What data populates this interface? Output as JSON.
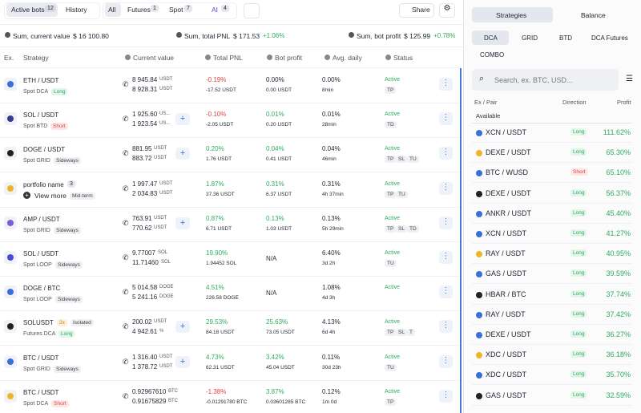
{
  "top": {
    "tabs": [
      {
        "label": "Active bots",
        "count": 12
      },
      {
        "label": "History"
      }
    ],
    "filters": [
      {
        "label": "All"
      },
      {
        "label": "Futures",
        "count": 1
      },
      {
        "label": "Spot",
        "count": 7
      },
      {
        "label": "AI",
        "count": 4
      }
    ],
    "share": "Share"
  },
  "summary": [
    {
      "label": "Sum, current value",
      "value": "$ 16 100.80"
    },
    {
      "label": "Sum, total PNL",
      "value": "$ 171.53",
      "change": "+1.06%"
    },
    {
      "label": "Sum, bot profit",
      "value": "$ 125.99",
      "change": "+0.78%"
    }
  ],
  "table": {
    "headers": [
      "Ex.",
      "Strategy",
      "Current value",
      "Total PNL",
      "Bot profit",
      "Avg. daily",
      "Status"
    ],
    "rows": [
      {
        "pair": "ETH / USDT",
        "type": "Spot DCA",
        "tag": "Long",
        "current": [
          [
            "8 945.84",
            "USDT"
          ],
          [
            "8 928.31",
            "USDT"
          ]
        ],
        "pnl": [
          "-0.19%",
          "-17.52 USDT"
        ],
        "profit": [
          "0.00%",
          "0.00 USDT"
        ],
        "daily": [
          "0.00%",
          "8min"
        ],
        "status": "Active",
        "flags": [
          "TP"
        ]
      },
      {
        "pair": "SOL / USDT",
        "type": "Spot BTD",
        "tag": "Short",
        "current": [
          [
            "1 925.60",
            "US..."
          ],
          [
            "1 923.54",
            "US..."
          ]
        ],
        "pnl": [
          "-0.10%",
          "-2.05 USDT"
        ],
        "profit": [
          "0.01%",
          "0.20 USDT"
        ],
        "daily": [
          "0.01%",
          "28min"
        ],
        "status": "Active",
        "flags": [
          "TD"
        ]
      },
      {
        "pair": "DOGE / USDT",
        "type": "Spot GRID",
        "tag": "Sideways",
        "current": [
          [
            "881.95",
            "USDT"
          ],
          [
            "883.72",
            "USDT"
          ]
        ],
        "pnl": [
          "0.20%",
          "1.76 USDT"
        ],
        "profit": [
          "0.04%",
          "0.41 USDT"
        ],
        "daily": [
          "0.04%",
          "46min"
        ],
        "status": "Active",
        "flags": [
          "TP",
          "SL",
          "TU"
        ]
      },
      {
        "pair": "portfolio name",
        "count": 3,
        "more": "View more",
        "tag": "Mid-term",
        "current": [
          [
            "1 997.47",
            "USDT"
          ],
          [
            "2 034.83",
            "USDT"
          ]
        ],
        "pnl": [
          "1.87%",
          "37.36 USDT"
        ],
        "profit": [
          "0.31%",
          "6.37 USDT"
        ],
        "daily": [
          "0.31%",
          "4h 37min"
        ],
        "status": "Active",
        "flags": [
          "TP",
          "TU"
        ]
      },
      {
        "pair": "AMP / USDT",
        "type": "Spot GRID",
        "tag": "Sideways",
        "current": [
          [
            "763.91",
            "USDT"
          ],
          [
            "770.62",
            "USDT"
          ]
        ],
        "pnl": [
          "0.87%",
          "6.71 USDT"
        ],
        "profit": [
          "0.13%",
          "1.03 USDT"
        ],
        "daily": [
          "0.13%",
          "5h 29min"
        ],
        "status": "Active",
        "flags": [
          "TP",
          "SL",
          "TD"
        ]
      },
      {
        "pair": "SOL / USDT",
        "type": "Spot LOOP",
        "tag": "Sideways",
        "current": [
          [
            "9.77007",
            "SOL"
          ],
          [
            "11.71460",
            "SOL"
          ]
        ],
        "pnl": [
          "19.90%",
          "1.94452 SOL"
        ],
        "profit": [
          "N/A"
        ],
        "daily": [
          "6.40%",
          "3d 2h"
        ],
        "status": "Active",
        "flags": [
          "TU"
        ]
      },
      {
        "pair": "DOGE / BTC",
        "type": "Spot LOOP",
        "tag": "Sideways",
        "current": [
          [
            "5 014.58",
            "DOGE"
          ],
          [
            "5 241.16",
            "DOGE"
          ]
        ],
        "pnl": [
          "4.51%",
          "226.58 DOGE"
        ],
        "profit": [
          "N/A"
        ],
        "daily": [
          "1.08%",
          "4d 3h"
        ],
        "status": "Active",
        "flags": []
      },
      {
        "pair": "SOLUSDT",
        "lev": "2x",
        "margin": "Isolated",
        "type": "Futures DCA",
        "tag": "Long",
        "current": [
          [
            "200.02",
            "USDT"
          ],
          [
            "4 942.61",
            "%"
          ]
        ],
        "pnl": [
          "29.53%",
          "84.18 USDT"
        ],
        "profit": [
          "25.63%",
          "73.05 USDT"
        ],
        "daily": [
          "4.13%",
          "6d 4h"
        ],
        "status": "Active",
        "flags": [
          "TP",
          "SL",
          "T"
        ]
      },
      {
        "pair": "BTC / USDT",
        "type": "Spot GRID",
        "tag": "Sideways",
        "current": [
          [
            "1 316.40",
            "USDT"
          ],
          [
            "1 378.72",
            "USDT"
          ]
        ],
        "pnl": [
          "4.73%",
          "62.31 USDT"
        ],
        "profit": [
          "3.42%",
          "45.04 USDT"
        ],
        "daily": [
          "0.11%",
          "30d 23h"
        ],
        "status": "Active",
        "flags": [
          "TU"
        ]
      },
      {
        "pair": "BTC / USDT",
        "type": "Spot DCA",
        "tag": "Short",
        "current": [
          [
            "0.92967610",
            "BTC"
          ],
          [
            "0.91675829",
            "BTC"
          ]
        ],
        "pnl": [
          "-1.38%",
          "-0.01291780 BTC"
        ],
        "profit": [
          "3.87%",
          "0.03601285 BTC"
        ],
        "daily": [
          "0.12%",
          "1m 0d"
        ],
        "status": "Active",
        "flags": [
          "TP"
        ]
      }
    ]
  },
  "panel": {
    "tabs": [
      "Strategies",
      "Balance"
    ],
    "subtabs": [
      "DCA",
      "GRID",
      "BTD",
      "DCA Futures",
      "COMBO"
    ],
    "search": "Search, ex. BTC, USD...",
    "headers": [
      "Ex / Pair",
      "Direction",
      "Profit"
    ],
    "section": "Available",
    "rows": [
      {
        "pair": "XCN / USDT",
        "dir": "Long",
        "profit": "111.62%"
      },
      {
        "pair": "DEXE / USDT",
        "dir": "Long",
        "profit": "65.30%"
      },
      {
        "pair": "BTC / WUSD",
        "dir": "Short",
        "profit": "65.10%"
      },
      {
        "pair": "DEXE / USDT",
        "dir": "Long",
        "profit": "56.37%"
      },
      {
        "pair": "ANKR / USDT",
        "dir": "Long",
        "profit": "45.40%"
      },
      {
        "pair": "XCN / USDT",
        "dir": "Long",
        "profit": "41.27%"
      },
      {
        "pair": "RAY / USDT",
        "dir": "Long",
        "profit": "40.95%"
      },
      {
        "pair": "GAS / USDT",
        "dir": "Long",
        "profit": "39.59%"
      },
      {
        "pair": "HBAR / BTC",
        "dir": "Long",
        "profit": "37.74%"
      },
      {
        "pair": "RAY / USDT",
        "dir": "Long",
        "profit": "37.42%"
      },
      {
        "pair": "DEXE / USDT",
        "dir": "Long",
        "profit": "36.27%"
      },
      {
        "pair": "XDC / USDT",
        "dir": "Long",
        "profit": "36.18%"
      },
      {
        "pair": "XDC / USDT",
        "dir": "Long",
        "profit": "35.70%"
      },
      {
        "pair": "GAS / USDT",
        "dir": "Long",
        "profit": "32.59%"
      }
    ]
  }
}
